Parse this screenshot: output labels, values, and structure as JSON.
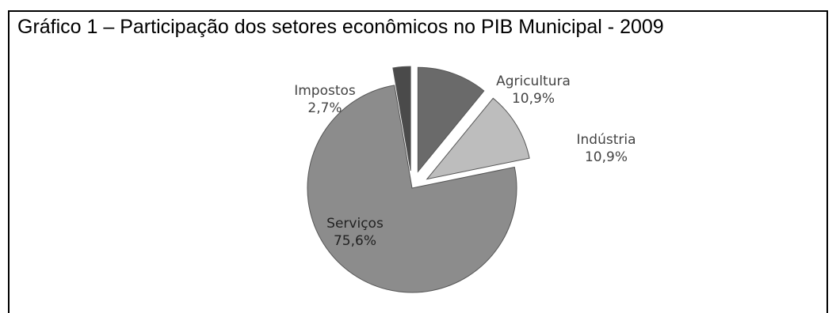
{
  "chart_data": {
    "type": "pie",
    "title": "Gráfico 1 – Participação dos setores econômicos no PIB Municipal - 2009",
    "slices": [
      {
        "name": "Agricultura",
        "value": 10.9,
        "value_label": "10,9%",
        "color": "#6a6a6a",
        "exploded": true
      },
      {
        "name": "Indústria",
        "value": 10.9,
        "value_label": "10,9%",
        "color": "#bdbdbd",
        "exploded": true
      },
      {
        "name": "Serviços",
        "value": 75.6,
        "value_label": "75,6%",
        "color": "#8c8c8c",
        "exploded": false
      },
      {
        "name": "Impostos",
        "value": 2.7,
        "value_label": "2,7%",
        "color": "#4a4a4a",
        "exploded": true
      }
    ],
    "legend": "none",
    "start_angle": "12 o'clock, clockwise"
  }
}
